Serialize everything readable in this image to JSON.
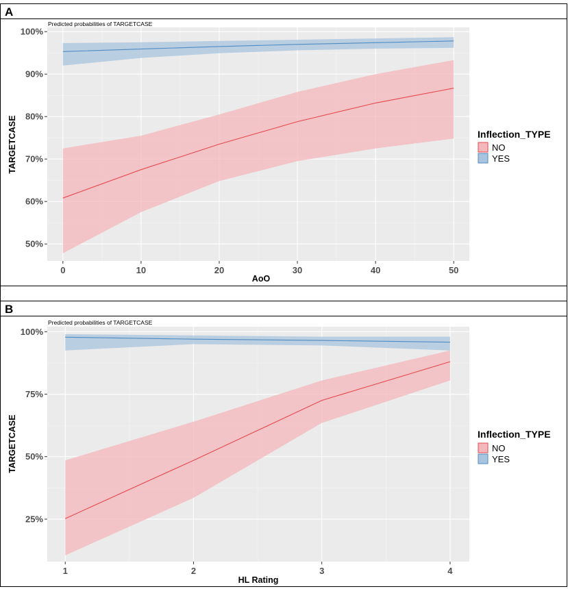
{
  "colors": {
    "no": "#e8474b",
    "yes": "#4f8bc0",
    "no_fill": "#f4b7bb",
    "yes_fill": "#a9c4df",
    "panel_bg": "#ebebeb"
  },
  "legend": {
    "title": "Inflection_TYPE",
    "items": [
      "NO",
      "YES"
    ]
  },
  "chart_data": [
    {
      "panel_label": "A",
      "type": "line",
      "title": "Predicted probabilities of TARGETCASE",
      "xlabel": "AoO",
      "ylabel": "TARGETCASE",
      "xlim": [
        -2,
        52
      ],
      "ylim": [
        46,
        101
      ],
      "x_ticks": [
        0,
        10,
        20,
        30,
        40,
        50
      ],
      "x_tick_labels": [
        "0",
        "10",
        "20",
        "30",
        "40",
        "50"
      ],
      "y_ticks": [
        50,
        60,
        70,
        80,
        90,
        100
      ],
      "y_tick_labels": [
        "50%",
        "60%",
        "70%",
        "80%",
        "90%",
        "100%"
      ],
      "series": [
        {
          "name": "NO",
          "x": [
            0,
            10,
            20,
            30,
            40,
            50
          ],
          "values": [
            60.8,
            67.5,
            73.5,
            78.8,
            83.2,
            86.7
          ],
          "lower": [
            47.8,
            57.5,
            64.8,
            69.5,
            72.5,
            74.8
          ],
          "upper": [
            72.5,
            75.5,
            80.5,
            85.8,
            90.0,
            93.3
          ]
        },
        {
          "name": "YES",
          "x": [
            0,
            10,
            20,
            30,
            40,
            50
          ],
          "values": [
            95.3,
            95.9,
            96.5,
            97.0,
            97.4,
            97.8
          ],
          "lower": [
            92.0,
            93.8,
            94.9,
            95.6,
            96.0,
            96.2
          ],
          "upper": [
            97.3,
            97.5,
            97.8,
            98.1,
            98.4,
            98.7
          ]
        }
      ]
    },
    {
      "panel_label": "B",
      "type": "line",
      "title": "Predicted probabilities of TARGETCASE",
      "xlabel": "HL Rating",
      "ylabel": "TARGETCASE",
      "xlim": [
        0.86,
        4.15
      ],
      "ylim": [
        8,
        102
      ],
      "x_ticks": [
        1,
        2,
        3,
        4
      ],
      "x_tick_labels": [
        "1",
        "2",
        "3",
        "4"
      ],
      "y_ticks": [
        25,
        50,
        75,
        100
      ],
      "y_tick_labels": [
        "25%",
        "50%",
        "75%",
        "100%"
      ],
      "series": [
        {
          "name": "NO",
          "x": [
            1,
            2,
            3,
            4
          ],
          "values": [
            25.2,
            48.5,
            72.5,
            88.0
          ],
          "lower": [
            10.5,
            33.5,
            63.5,
            80.5
          ],
          "upper": [
            48.5,
            64.0,
            80.5,
            92.5
          ]
        },
        {
          "name": "YES",
          "x": [
            1,
            2,
            3,
            4
          ],
          "values": [
            97.8,
            97.0,
            96.5,
            95.8
          ],
          "lower": [
            92.5,
            95.0,
            94.5,
            92.5
          ],
          "upper": [
            99.0,
            98.5,
            98.0,
            98.0
          ]
        }
      ]
    }
  ]
}
